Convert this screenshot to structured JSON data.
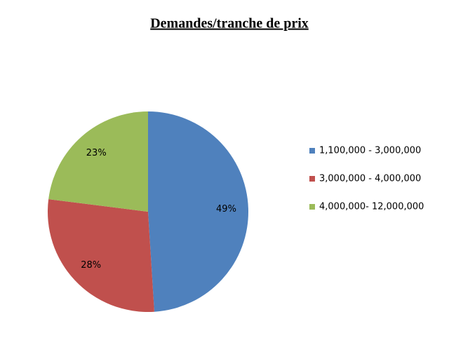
{
  "chart_data": {
    "type": "pie",
    "title": "Demandes/tranche de prix",
    "categories": [
      "1,100,000 - 3,000,000",
      "3,000,000 - 4,000,000",
      "4,000,000- 12,000,000"
    ],
    "values": [
      49,
      28,
      23
    ],
    "value_labels": [
      "49%",
      "28%",
      "23%"
    ],
    "colors": [
      "#4f81bd",
      "#c0504d",
      "#9bbb59"
    ],
    "legend": "right"
  }
}
